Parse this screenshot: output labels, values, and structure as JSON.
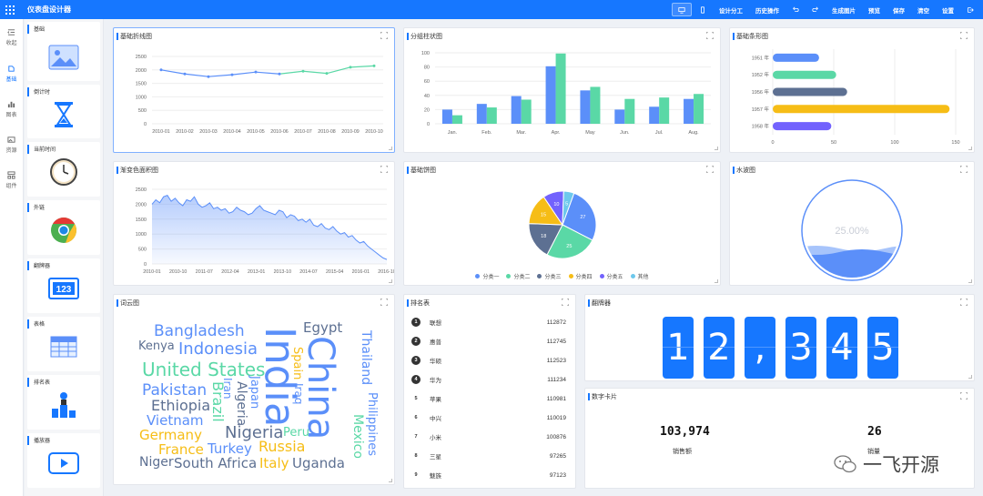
{
  "app": {
    "title": "仪表盘设计器"
  },
  "toolbar": {
    "buttons": [
      {
        "label": "设计分工"
      },
      {
        "label": "历史操作"
      },
      {
        "label": "生成图片"
      },
      {
        "label": "预览"
      },
      {
        "label": "保存"
      },
      {
        "label": "清空"
      },
      {
        "label": "设置"
      }
    ]
  },
  "leftnav": {
    "items": [
      {
        "label": "收起",
        "icon": "collapse-icon"
      },
      {
        "label": "基础",
        "icon": "cube-icon"
      },
      {
        "label": "图表",
        "icon": "chart-icon"
      },
      {
        "label": "资源",
        "icon": "image-icon"
      },
      {
        "label": "组件",
        "icon": "component-icon"
      }
    ]
  },
  "components": {
    "header": "基础",
    "items": [
      {
        "label": "倒计时",
        "icon": "hourglass-icon"
      },
      {
        "label": "当前时间",
        "icon": "clock-icon"
      },
      {
        "label": "外链",
        "icon": "chrome-icon"
      },
      {
        "label": "翻牌器",
        "icon": "flip-counter-icon"
      },
      {
        "label": "表格",
        "icon": "table-icon"
      },
      {
        "label": "排名表",
        "icon": "podium-icon"
      },
      {
        "label": "播放器",
        "icon": "play-icon"
      }
    ]
  },
  "panels": {
    "line": {
      "title": "基础折线图"
    },
    "bar": {
      "title": "分组柱状图"
    },
    "hbar": {
      "title": "基础条形图"
    },
    "area": {
      "title": "渐变色面积图"
    },
    "pie": {
      "title": "基础饼图"
    },
    "water": {
      "title": "水波图",
      "value": "25.00%"
    },
    "wordcloud": {
      "title": "词云图"
    },
    "rank": {
      "title": "排名表"
    },
    "flip": {
      "title": "翻牌器",
      "digits": [
        "1",
        "2",
        ",",
        "3",
        "4",
        "5"
      ]
    },
    "card": {
      "title": "数字卡片"
    }
  },
  "chart_data": [
    {
      "type": "line",
      "x": [
        "2010-01",
        "2010-02",
        "2010-03",
        "2010-04",
        "2010-05",
        "2010-06",
        "2010-07",
        "2010-08",
        "2010-09",
        "2010-10"
      ],
      "values": [
        2000,
        1850,
        1750,
        1820,
        1920,
        1850,
        1950,
        1870,
        2100,
        2150
      ],
      "ylim": [
        0,
        2500
      ],
      "yticks": [
        "2500",
        "2000",
        "1500",
        "1000",
        "500",
        "0"
      ],
      "xticklabels": [
        "2010-01",
        "2010-02",
        "2010-03",
        "2010-04",
        "2010-05",
        "2010-06",
        "2010-07",
        "2010-08",
        "2010-09",
        "2010-10"
      ],
      "colors": [
        "#5b8ff9",
        "#5ad8a6"
      ]
    },
    {
      "type": "bar",
      "categories": [
        "Jan.",
        "Feb.",
        "Mar.",
        "Apr.",
        "May",
        "Jun.",
        "Jul.",
        "Aug."
      ],
      "series": [
        {
          "values": [
            20,
            28,
            39,
            81,
            47,
            20,
            24,
            35
          ],
          "color": "#5b8ff9"
        },
        {
          "values": [
            12,
            23,
            34,
            99,
            52,
            35,
            37,
            42
          ],
          "color": "#5ad8a6"
        }
      ],
      "ylim": [
        0,
        100
      ],
      "yticks": [
        "100",
        "80",
        "60",
        "40",
        "20",
        "0"
      ]
    },
    {
      "type": "bar",
      "orientation": "horizontal",
      "categories": [
        "1951 年",
        "1952 年",
        "1956 年",
        "1957 年",
        "1958 年"
      ],
      "values": [
        38,
        52,
        61,
        145,
        48
      ],
      "colors": [
        "#5b8ff9",
        "#5ad8a6",
        "#5d7092",
        "#f6bd16",
        "#7262fd"
      ],
      "xlim": [
        0,
        150
      ],
      "xticks": [
        "0",
        "50",
        "100",
        "150"
      ]
    },
    {
      "type": "area",
      "values": [
        2000,
        2150,
        2050,
        2250,
        2300,
        2100,
        2200,
        2050,
        1950,
        2150,
        2100,
        2250,
        2000,
        1900,
        1950,
        2050,
        1850,
        1900,
        1800,
        1850,
        1700,
        1750,
        1900,
        1800,
        1750,
        1650,
        1700,
        1850,
        1950,
        1800,
        1750,
        1700,
        1650,
        1800,
        1750,
        1550,
        1650,
        1600,
        1450,
        1500,
        1400,
        1500,
        1300,
        1250,
        1350,
        1200,
        1150,
        1250,
        1100,
        1000,
        1050,
        900,
        950,
        800,
        700,
        750,
        600,
        500,
        400,
        300,
        200,
        150
      ],
      "ylim": [
        0,
        2500
      ],
      "yticks": [
        "2500",
        "2000",
        "1500",
        "1000",
        "500",
        "0"
      ],
      "xticklabels": [
        "2010-01",
        "2010-10",
        "2011-07",
        "2012-04",
        "2013-01",
        "2013-10",
        "2014-07",
        "2015-04",
        "2016-01",
        "2016-10"
      ],
      "color": "#5b8ff9"
    },
    {
      "type": "pie",
      "slices": [
        {
          "name": "分类一",
          "value": 27,
          "color": "#5b8ff9"
        },
        {
          "name": "分类二",
          "value": 25,
          "color": "#5ad8a6"
        },
        {
          "name": "分类三",
          "value": 18,
          "color": "#5d7092"
        },
        {
          "name": "分类四",
          "value": 15,
          "color": "#f6bd16"
        },
        {
          "name": "分类五",
          "value": 10,
          "color": "#7262fd"
        },
        {
          "name": "其他",
          "value": 5,
          "color": "#6dc8ec"
        }
      ]
    }
  ],
  "wordcloud": {
    "words": [
      {
        "text": "Bangladesh",
        "color": "#5b8ff9"
      },
      {
        "text": "Egypt",
        "color": "#5d7092"
      },
      {
        "text": "Kenya",
        "color": "#5d7092"
      },
      {
        "text": "Indonesia",
        "color": "#5b8ff9"
      },
      {
        "text": "India",
        "color": "#5b8ff9"
      },
      {
        "text": "China",
        "color": "#5b8ff9"
      },
      {
        "text": "Thailand",
        "color": "#5b8ff9"
      },
      {
        "text": "United States",
        "color": "#5ad8a6"
      },
      {
        "text": "Spain",
        "color": "#f6bd16"
      },
      {
        "text": "Iraq",
        "color": "#5b8ff9"
      },
      {
        "text": "Pakistan",
        "color": "#5b8ff9"
      },
      {
        "text": "Brazil",
        "color": "#5ad8a6"
      },
      {
        "text": "Iran",
        "color": "#5b8ff9"
      },
      {
        "text": "Algeria",
        "color": "#5d7092"
      },
      {
        "text": "Japan",
        "color": "#5b8ff9"
      },
      {
        "text": "Ethiopia",
        "color": "#5d7092"
      },
      {
        "text": "Vietnam",
        "color": "#5b8ff9"
      },
      {
        "text": "Philippines",
        "color": "#5b8ff9"
      },
      {
        "text": "Mexico",
        "color": "#5ad8a6"
      },
      {
        "text": "Germany",
        "color": "#f6bd16"
      },
      {
        "text": "Nigeria",
        "color": "#5d7092"
      },
      {
        "text": "Peru",
        "color": "#5ad8a6"
      },
      {
        "text": "France",
        "color": "#f6bd16"
      },
      {
        "text": "Russia",
        "color": "#f6bd16"
      },
      {
        "text": "Turkey",
        "color": "#5b8ff9"
      },
      {
        "text": "Niger",
        "color": "#5d7092"
      },
      {
        "text": "South Africa",
        "color": "#5d7092"
      },
      {
        "text": "Italy",
        "color": "#f6bd16"
      },
      {
        "text": "Uganda",
        "color": "#5d7092"
      }
    ]
  },
  "rank": {
    "rows": [
      {
        "rank": "1",
        "name": "联想",
        "value": "112872"
      },
      {
        "rank": "2",
        "name": "惠普",
        "value": "112745"
      },
      {
        "rank": "3",
        "name": "华硕",
        "value": "112523"
      },
      {
        "rank": "4",
        "name": "华为",
        "value": "111234"
      },
      {
        "rank": "5",
        "name": "苹果",
        "value": "110981"
      },
      {
        "rank": "6",
        "name": "中兴",
        "value": "110019"
      },
      {
        "rank": "7",
        "name": "小米",
        "value": "100876"
      },
      {
        "rank": "8",
        "name": "三星",
        "value": "97265"
      },
      {
        "rank": "9",
        "name": "魅族",
        "value": "97123"
      }
    ]
  },
  "card": {
    "items": [
      {
        "value": "103,974",
        "label": "销售额"
      },
      {
        "value": "26",
        "label": "销量"
      }
    ]
  },
  "watermark": {
    "text": "一飞开源"
  }
}
